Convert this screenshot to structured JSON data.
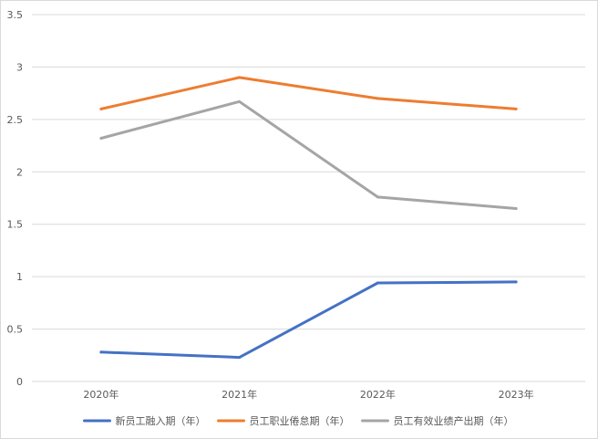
{
  "chart_data": {
    "type": "line",
    "categories": [
      "2020年",
      "2021年",
      "2022年",
      "2023年"
    ],
    "series": [
      {
        "name": "新员工融入期（年）",
        "values": [
          0.28,
          0.23,
          0.94,
          0.95
        ],
        "color": "#4472c4"
      },
      {
        "name": "员工职业倦怠期（年）",
        "values": [
          2.6,
          2.9,
          2.7,
          2.6
        ],
        "color": "#ed7d31"
      },
      {
        "name": "员工有效业绩产出期（年）",
        "values": [
          2.32,
          2.67,
          1.76,
          1.65
        ],
        "color": "#a5a5a5"
      }
    ],
    "yticks": [
      "0",
      "0.5",
      "1",
      "1.5",
      "2",
      "2.5",
      "3",
      "3.5"
    ],
    "ylim": [
      0,
      3.5
    ],
    "grid": true,
    "legend": "bottom"
  }
}
